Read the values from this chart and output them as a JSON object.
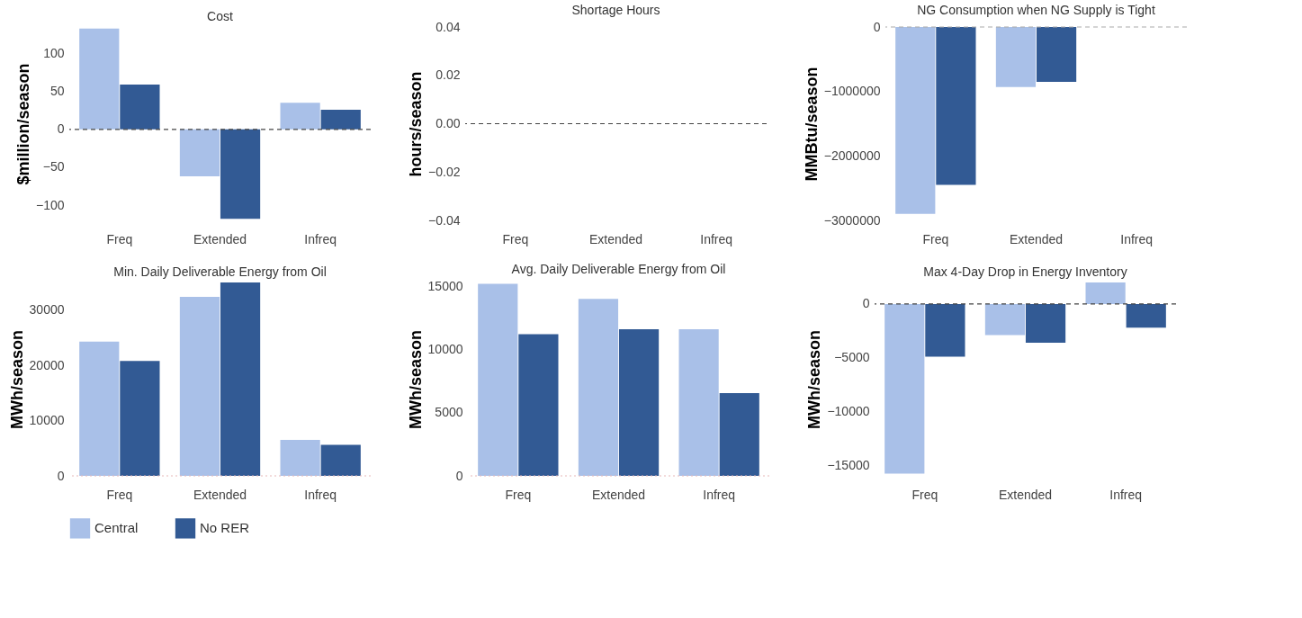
{
  "chart_data": [
    {
      "type": "bar",
      "title": "Cost",
      "ylabel": "$million/season",
      "categories": [
        "Freq",
        "Extended",
        "Infreq"
      ],
      "series": [
        {
          "name": "Central",
          "color": "#a9c0e8",
          "values": [
            133,
            -62,
            35
          ]
        },
        {
          "name": "No RER",
          "color": "#325a94",
          "values": [
            59,
            -118,
            26
          ]
        }
      ],
      "ylim": [
        -120,
        135
      ],
      "yticks": [
        -100,
        -50,
        0,
        50,
        100
      ],
      "grid": false,
      "legend": "bottom",
      "ref_lines": [
        {
          "axis": "y",
          "value": 0,
          "color": "#444444",
          "line_style": "dashed"
        }
      ]
    },
    {
      "type": "bar",
      "title": "Shortage Hours",
      "ylabel": "hours/season",
      "categories": [
        "Freq",
        "Extended",
        "Infreq"
      ],
      "series": [
        {
          "name": "Central",
          "color": "#a9c0e8",
          "values": [
            0,
            0,
            0
          ]
        },
        {
          "name": "No RER",
          "color": "#325a94",
          "values": [
            0,
            0,
            0
          ]
        }
      ],
      "ylim": [
        -0.04,
        0.04
      ],
      "yticks": [
        {
          "value": -0.04,
          "label": "−0.04"
        },
        {
          "value": -0.02,
          "label": "−0.02"
        },
        {
          "value": 0,
          "label": "0.00"
        },
        {
          "value": 0.02,
          "label": "0.02"
        },
        {
          "value": 0.04,
          "label": "0.04"
        }
      ],
      "grid": false,
      "ref_lines": [
        {
          "axis": "y",
          "value": 0,
          "color": "#444444",
          "line_style": "dashed"
        }
      ]
    },
    {
      "type": "bar",
      "title": "NG Consumption when NG Supply is Tight",
      "ylabel": "MMBtu/season",
      "categories": [
        "Freq",
        "Extended",
        "Infreq"
      ],
      "series": [
        {
          "name": "Central",
          "color": "#a9c0e8",
          "values": [
            -2900000,
            -930000,
            0
          ]
        },
        {
          "name": "No RER",
          "color": "#325a94",
          "values": [
            -2450000,
            -850000,
            0
          ]
        }
      ],
      "ylim": [
        -3000000,
        0
      ],
      "yticks": [
        -3000000,
        -2000000,
        -1000000,
        0
      ],
      "grid": false,
      "legend": "bottom",
      "ref_lines": [
        {
          "axis": "y",
          "value": 0,
          "color": "#aaaaaa",
          "line_style": "dashed"
        }
      ]
    },
    {
      "type": "bar",
      "title": "Min. Daily Deliverable Energy from Oil",
      "ylabel": "MWh/season",
      "categories": [
        "Freq",
        "Extended",
        "Infreq"
      ],
      "series": [
        {
          "name": "Central",
          "color": "#a9c0e8",
          "values": [
            24300,
            32400,
            6500
          ]
        },
        {
          "name": "No RER",
          "color": "#325a94",
          "values": [
            20800,
            35000,
            5600
          ]
        }
      ],
      "ylim": [
        0,
        35000
      ],
      "yticks": [
        0,
        10000,
        20000,
        30000
      ],
      "grid": false,
      "legend": "bottom",
      "ref_lines": [
        {
          "axis": "y",
          "value": 0,
          "color": "#e8b8b8",
          "line_style": "dotted"
        }
      ]
    },
    {
      "type": "bar",
      "title": "Avg. Daily Deliverable Energy from Oil",
      "ylabel": "MWh/season",
      "categories": [
        "Freq",
        "Extended",
        "Infreq"
      ],
      "series": [
        {
          "name": "Central",
          "color": "#a9c0e8",
          "values": [
            15200,
            14000,
            11600
          ]
        },
        {
          "name": "No RER",
          "color": "#325a94",
          "values": [
            11200,
            11600,
            6550
          ]
        }
      ],
      "ylim": [
        0,
        15300
      ],
      "yticks": [
        0,
        5000,
        10000,
        15000
      ],
      "grid": false,
      "legend": "bottom",
      "ref_lines": [
        {
          "axis": "y",
          "value": 0,
          "color": "#e8b8b8",
          "line_style": "dotted"
        }
      ]
    },
    {
      "type": "bar",
      "title": "Max 4-Day Drop in Energy Inventory",
      "ylabel": "MWh/season",
      "categories": [
        "Freq",
        "Extended",
        "Infreq"
      ],
      "series": [
        {
          "name": "Central",
          "color": "#a9c0e8",
          "values": [
            -15800,
            -2900,
            2000
          ]
        },
        {
          "name": "No RER",
          "color": "#325a94",
          "values": [
            -4900,
            -3600,
            -2200
          ]
        }
      ],
      "ylim": [
        -16000,
        2000
      ],
      "yticks": [
        -15000,
        -10000,
        -5000,
        0
      ],
      "grid": false,
      "legend": "bottom",
      "ref_lines": [
        {
          "axis": "y",
          "value": 0,
          "color": "#444444",
          "line_style": "dashed"
        }
      ]
    }
  ]
}
